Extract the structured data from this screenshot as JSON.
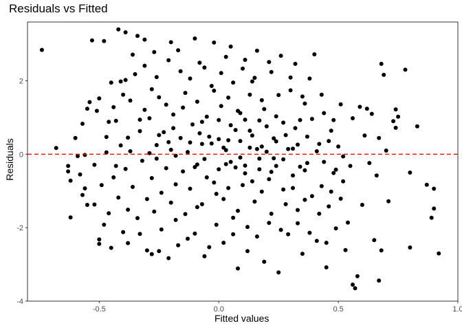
{
  "chart_data": {
    "type": "scatter",
    "title": "Residuals vs Fitted",
    "xlabel": "Fitted values",
    "ylabel": "Residuals",
    "xlim": [
      -0.8,
      1.0
    ],
    "ylim": [
      -4.0,
      3.6
    ],
    "xticks": [
      -0.5,
      0.0,
      0.5,
      1.0
    ],
    "xtick_labels": [
      "-0.5",
      "0.0",
      "0.5",
      "1.0"
    ],
    "yticks": [
      -4,
      -2,
      0,
      2
    ],
    "ytick_labels": [
      "-4",
      "-2",
      "0",
      "2"
    ],
    "reference_line": {
      "y": 0,
      "style": "dashed",
      "color": "#ff0000"
    },
    "point_color": "#000000",
    "grid": false,
    "points": [
      [
        -0.74,
        2.84
      ],
      [
        -0.68,
        0.17
      ],
      [
        -0.63,
        -0.32
      ],
      [
        -0.63,
        -0.47
      ],
      [
        -0.62,
        -0.72
      ],
      [
        -0.62,
        -1.72
      ],
      [
        -0.57,
        0.83
      ],
      [
        -0.56,
        -0.02
      ],
      [
        -0.56,
        -0.93
      ],
      [
        -0.55,
        1.24
      ],
      [
        -0.55,
        -1.38
      ],
      [
        -0.54,
        1.42
      ],
      [
        -0.53,
        3.1
      ],
      [
        -0.52,
        -0.29
      ],
      [
        -0.52,
        -1.37
      ],
      [
        -0.51,
        1.18
      ],
      [
        -0.5,
        1.52
      ],
      [
        -0.5,
        -2.32
      ],
      [
        -0.5,
        -2.44
      ],
      [
        -0.48,
        3.08
      ],
      [
        -0.47,
        0.47
      ],
      [
        -0.46,
        0.88
      ],
      [
        -0.46,
        -1.61
      ],
      [
        -0.45,
        1.95
      ],
      [
        -0.45,
        -2.55
      ],
      [
        -0.44,
        1.28
      ],
      [
        -0.43,
        -0.32
      ],
      [
        -0.42,
        3.4
      ],
      [
        -0.41,
        1.98
      ],
      [
        -0.41,
        0.24
      ],
      [
        -0.4,
        -2.12
      ],
      [
        -0.39,
        3.32
      ],
      [
        -0.39,
        2.02
      ],
      [
        -0.38,
        0.45
      ],
      [
        -0.38,
        -1.51
      ],
      [
        -0.37,
        1.46
      ],
      [
        -0.36,
        2.71
      ],
      [
        -0.34,
        3.22
      ],
      [
        -0.33,
        0.94
      ],
      [
        -0.33,
        -2.17
      ],
      [
        -0.31,
        2.41
      ],
      [
        -0.31,
        3.12
      ],
      [
        -0.3,
        -1.22
      ],
      [
        -0.29,
        0.03
      ],
      [
        -0.28,
        1.77
      ],
      [
        -0.28,
        -2.72
      ],
      [
        -0.26,
        2.1
      ],
      [
        -0.25,
        0.52
      ],
      [
        -0.25,
        -2.64
      ],
      [
        -0.24,
        -1.05
      ],
      [
        -0.22,
        1.35
      ],
      [
        -0.21,
        -2.83
      ],
      [
        -0.2,
        3.05
      ],
      [
        -0.19,
        0.71
      ],
      [
        -0.18,
        -1.79
      ],
      [
        -0.16,
        2.26
      ],
      [
        -0.15,
        -0.47
      ],
      [
        -0.14,
        1.67
      ],
      [
        -0.13,
        -2.3
      ],
      [
        -0.12,
        0.32
      ],
      [
        -0.1,
        3.15
      ],
      [
        -0.09,
        -1.44
      ],
      [
        -0.08,
        2.49
      ],
      [
        -0.07,
        0.88
      ],
      [
        -0.06,
        -2.78
      ],
      [
        -0.05,
        -0.63
      ],
      [
        -0.03,
        1.86
      ],
      [
        -0.02,
        3.04
      ],
      [
        -0.01,
        -1.08
      ],
      [
        0.0,
        0.41
      ],
      [
        0.01,
        2.21
      ],
      [
        0.02,
        -2.41
      ],
      [
        0.03,
        -0.27
      ],
      [
        0.04,
        1.54
      ],
      [
        0.05,
        2.93
      ],
      [
        0.06,
        -1.73
      ],
      [
        0.07,
        0.66
      ],
      [
        0.08,
        -3.11
      ],
      [
        0.09,
        1.12
      ],
      [
        0.1,
        -0.84
      ],
      [
        0.11,
        2.57
      ],
      [
        0.12,
        -2.64
      ],
      [
        0.13,
        0.18
      ],
      [
        0.14,
        1.98
      ],
      [
        0.15,
        -1.29
      ],
      [
        0.16,
        2.82
      ],
      [
        0.17,
        -0.41
      ],
      [
        0.18,
        1.47
      ],
      [
        0.19,
        -2.93
      ],
      [
        0.2,
        0.76
      ],
      [
        0.21,
        -1.87
      ],
      [
        0.22,
        2.24
      ],
      [
        0.23,
        -0.11
      ],
      [
        0.24,
        1.03
      ],
      [
        0.25,
        -3.22
      ],
      [
        0.26,
        2.68
      ],
      [
        0.27,
        -0.96
      ],
      [
        0.28,
        0.52
      ],
      [
        0.29,
        -2.18
      ],
      [
        0.3,
        1.74
      ],
      [
        0.31,
        -0.58
      ],
      [
        0.32,
        2.46
      ],
      [
        0.33,
        -1.52
      ],
      [
        0.34,
        0.93
      ],
      [
        0.35,
        -2.71
      ],
      [
        0.36,
        1.38
      ],
      [
        0.37,
        -0.24
      ],
      [
        0.38,
        2.06
      ],
      [
        0.39,
        -1.14
      ],
      [
        0.4,
        2.72
      ],
      [
        0.41,
        -2.36
      ],
      [
        0.42,
        0.28
      ],
      [
        0.43,
        -0.87
      ],
      [
        0.44,
        1.12
      ],
      [
        0.45,
        -3.08
      ],
      [
        0.46,
        -1.42
      ],
      [
        0.47,
        0.64
      ],
      [
        0.48,
        -0.51
      ],
      [
        0.49,
        -2.02
      ],
      [
        0.5,
        0.21
      ],
      [
        0.51,
        1.36
      ],
      [
        0.52,
        -0.74
      ],
      [
        0.53,
        -2.61
      ],
      [
        0.55,
        -0.32
      ],
      [
        0.56,
        0.98
      ],
      [
        0.56,
        -3.55
      ],
      [
        0.57,
        -3.65
      ],
      [
        0.58,
        -3.32
      ],
      [
        0.59,
        1.29
      ],
      [
        0.6,
        -1.38
      ],
      [
        0.61,
        0.51
      ],
      [
        0.62,
        1.24
      ],
      [
        0.63,
        -0.24
      ],
      [
        0.64,
        1.1
      ],
      [
        0.65,
        -2.34
      ],
      [
        0.66,
        -0.58
      ],
      [
        0.67,
        0.44
      ],
      [
        0.67,
        -3.44
      ],
      [
        0.68,
        2.46
      ],
      [
        0.68,
        -2.62
      ],
      [
        0.69,
        2.16
      ],
      [
        0.7,
        0.1
      ],
      [
        0.71,
        -1.28
      ],
      [
        0.73,
        0.9
      ],
      [
        0.74,
        1.22
      ],
      [
        0.74,
        0.72
      ],
      [
        0.75,
        1.02
      ],
      [
        0.78,
        2.3
      ],
      [
        0.8,
        -2.54
      ],
      [
        0.8,
        -0.5
      ],
      [
        0.83,
        0.76
      ],
      [
        0.87,
        -0.83
      ],
      [
        0.89,
        -1.73
      ],
      [
        0.9,
        -1.48
      ],
      [
        0.9,
        -0.94
      ],
      [
        0.92,
        -2.7
      ],
      [
        -0.6,
        0.44
      ],
      [
        -0.59,
        -0.05
      ],
      [
        -0.58,
        -0.55
      ],
      [
        -0.57,
        -1.11
      ],
      [
        -0.49,
        -0.84
      ],
      [
        -0.48,
        -1.92
      ],
      [
        -0.47,
        0.05
      ],
      [
        -0.44,
        -0.63
      ],
      [
        -0.43,
        0.91
      ],
      [
        -0.42,
        -1.18
      ],
      [
        -0.4,
        1.62
      ],
      [
        -0.39,
        -0.4
      ],
      [
        -0.38,
        -2.42
      ],
      [
        -0.37,
        0.08
      ],
      [
        -0.36,
        -0.89
      ],
      [
        -0.35,
        2.18
      ],
      [
        -0.34,
        -1.74
      ],
      [
        -0.33,
        0.63
      ],
      [
        -0.32,
        -0.18
      ],
      [
        -0.31,
        1.21
      ],
      [
        -0.3,
        -2.62
      ],
      [
        -0.29,
        0.98
      ],
      [
        -0.28,
        -0.65
      ],
      [
        -0.27,
        2.78
      ],
      [
        -0.27,
        -1.56
      ],
      [
        -0.26,
        0.25
      ],
      [
        -0.25,
        1.55
      ],
      [
        -0.24,
        -2.05
      ],
      [
        -0.23,
        0.6
      ],
      [
        -0.22,
        -0.38
      ],
      [
        -0.21,
        2.56
      ],
      [
        -0.2,
        -1.32
      ],
      [
        -0.2,
        0.12
      ],
      [
        -0.19,
        1.08
      ],
      [
        -0.18,
        -0.82
      ],
      [
        -0.17,
        2.83
      ],
      [
        -0.17,
        -2.48
      ],
      [
        -0.16,
        0.44
      ],
      [
        -0.15,
        1.27
      ],
      [
        -0.14,
        -1.63
      ],
      [
        -0.13,
        0.06
      ],
      [
        -0.12,
        2.06
      ],
      [
        -0.12,
        -0.94
      ],
      [
        -0.11,
        0.81
      ],
      [
        -0.1,
        -2.16
      ],
      [
        -0.09,
        1.43
      ],
      [
        -0.09,
        -0.28
      ],
      [
        -0.08,
        0.57
      ],
      [
        -0.07,
        -1.36
      ],
      [
        -0.06,
        2.36
      ],
      [
        -0.06,
        -0.13
      ],
      [
        -0.05,
        1.02
      ],
      [
        -0.04,
        -2.53
      ],
      [
        -0.03,
        0.29
      ],
      [
        -0.02,
        -0.77
      ],
      [
        -0.02,
        1.73
      ],
      [
        -0.01,
        -1.92
      ],
      [
        0.0,
        0.93
      ],
      [
        0.0,
        -0.41
      ],
      [
        0.01,
        1.31
      ],
      [
        0.02,
        -1.22
      ],
      [
        0.03,
        2.65
      ],
      [
        0.03,
        0.11
      ],
      [
        0.04,
        -0.92
      ],
      [
        0.05,
        0.79
      ],
      [
        0.06,
        -2.18
      ],
      [
        0.06,
        1.95
      ],
      [
        0.07,
        -0.36
      ],
      [
        0.08,
        1.18
      ],
      [
        0.08,
        -1.54
      ],
      [
        0.09,
        0.36
      ],
      [
        0.1,
        2.33
      ],
      [
        0.11,
        -0.52
      ],
      [
        0.11,
        0.94
      ],
      [
        0.12,
        -1.98
      ],
      [
        0.13,
        1.62
      ],
      [
        0.14,
        -0.74
      ],
      [
        0.14,
        0.51
      ],
      [
        0.15,
        2.08
      ],
      [
        0.16,
        -2.24
      ],
      [
        0.17,
        0.92
      ],
      [
        0.17,
        -0.12
      ],
      [
        0.18,
        -1.02
      ],
      [
        0.19,
        1.23
      ],
      [
        0.2,
        0.07
      ],
      [
        0.21,
        -0.68
      ],
      [
        0.21,
        2.51
      ],
      [
        0.22,
        -1.62
      ],
      [
        0.23,
        0.43
      ],
      [
        0.24,
        -0.32
      ],
      [
        0.25,
        1.61
      ],
      [
        0.26,
        -2.06
      ],
      [
        0.27,
        0.86
      ],
      [
        0.28,
        -1.36
      ],
      [
        0.29,
        0.14
      ],
      [
        0.3,
        2.09
      ],
      [
        0.31,
        -0.92
      ],
      [
        0.32,
        0.71
      ],
      [
        0.33,
        -1.88
      ],
      [
        0.34,
        -0.34
      ],
      [
        0.35,
        1.57
      ],
      [
        0.36,
        -1.24
      ],
      [
        0.37,
        0.48
      ],
      [
        0.38,
        -2.14
      ],
      [
        0.39,
        0.96
      ],
      [
        0.41,
        0.08
      ],
      [
        0.42,
        -1.62
      ],
      [
        0.43,
        1.62
      ],
      [
        0.44,
        -0.21
      ],
      [
        0.45,
        -2.41
      ],
      [
        0.46,
        0.36
      ],
      [
        0.47,
        -1.02
      ],
      [
        0.48,
        0.93
      ],
      [
        0.49,
        -0.42
      ],
      [
        0.51,
        -1.21
      ],
      [
        0.52,
        -0.06
      ],
      [
        0.54,
        -1.86
      ],
      [
        -0.21,
        0.33
      ],
      [
        -0.1,
        -0.35
      ],
      [
        -0.04,
        0.48
      ],
      [
        0.02,
        0.18
      ],
      [
        0.05,
        -0.21
      ],
      [
        0.09,
        -0.09
      ],
      [
        0.13,
        0.64
      ],
      [
        0.18,
        0.21
      ],
      [
        0.22,
        -0.48
      ],
      [
        0.24,
        0.35
      ],
      [
        0.27,
        -0.14
      ],
      [
        0.33,
        0.26
      ],
      [
        0.36,
        -0.44
      ],
      [
        -0.26,
        -0.12
      ],
      [
        -0.18,
        -0.04
      ],
      [
        -0.07,
        0.28
      ],
      [
        0.04,
        0.38
      ],
      [
        0.11,
        -0.31
      ],
      [
        0.16,
        0.14
      ],
      [
        0.31,
        0.15
      ]
    ]
  }
}
